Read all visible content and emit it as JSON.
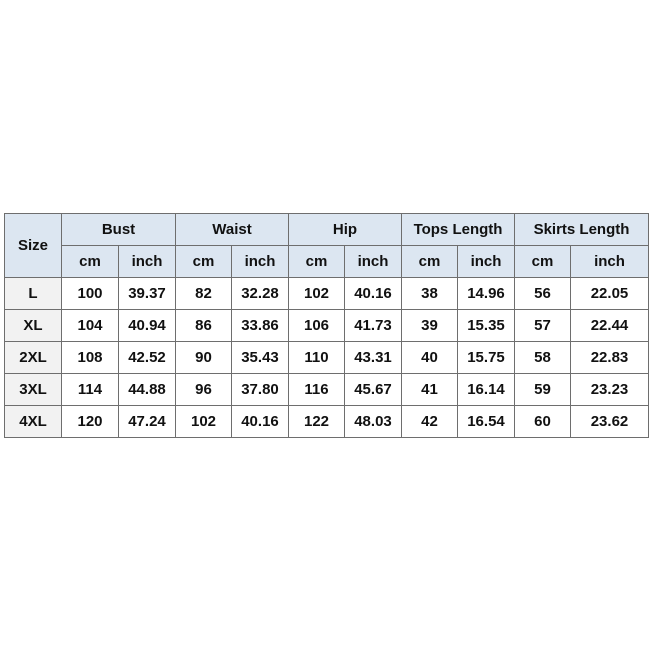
{
  "header": {
    "size_label": "Size",
    "groups": [
      "Bust",
      "Waist",
      "Hip",
      "Tops Length",
      "Skirts Length"
    ],
    "units": [
      "cm",
      "inch"
    ]
  },
  "rows": [
    {
      "size": "L",
      "values": [
        "100",
        "39.37",
        "82",
        "32.28",
        "102",
        "40.16",
        "38",
        "14.96",
        "56",
        "22.05"
      ]
    },
    {
      "size": "XL",
      "values": [
        "104",
        "40.94",
        "86",
        "33.86",
        "106",
        "41.73",
        "39",
        "15.35",
        "57",
        "22.44"
      ]
    },
    {
      "size": "2XL",
      "values": [
        "108",
        "42.52",
        "90",
        "35.43",
        "110",
        "43.31",
        "40",
        "15.75",
        "58",
        "22.83"
      ]
    },
    {
      "size": "3XL",
      "values": [
        "114",
        "44.88",
        "96",
        "37.80",
        "116",
        "45.67",
        "41",
        "16.14",
        "59",
        "23.23"
      ]
    },
    {
      "size": "4XL",
      "values": [
        "120",
        "47.24",
        "102",
        "40.16",
        "122",
        "48.03",
        "42",
        "16.54",
        "60",
        "23.62"
      ]
    }
  ],
  "colors": {
    "header_bg": "#dce6f1",
    "size_col_bg": "#f2f2f2",
    "border": "#6e6e6e"
  }
}
